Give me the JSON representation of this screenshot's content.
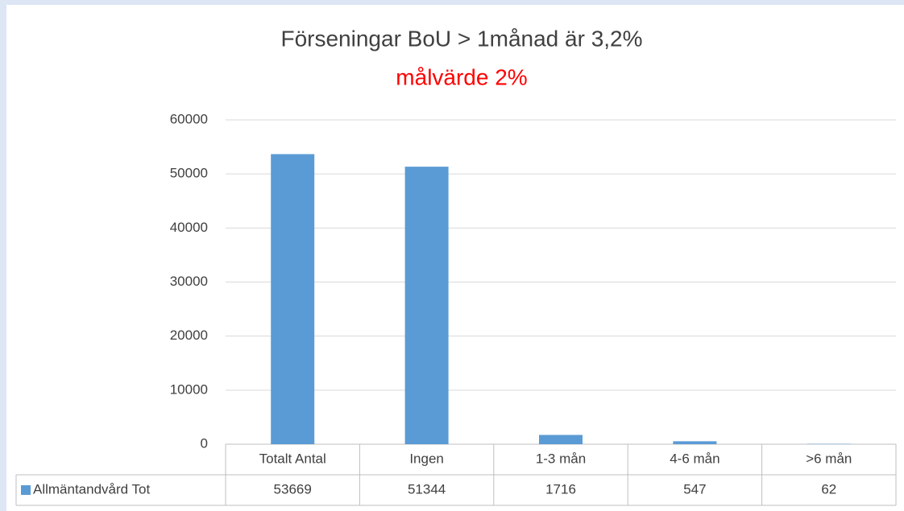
{
  "chart_data": {
    "type": "bar",
    "title": "Förseningar BoU > 1månad är 3,2%",
    "subtitle": "målvärde 2%",
    "categories": [
      "Totalt Antal",
      "Ingen",
      "1-3 mån",
      "4-6 mån",
      ">6 mån"
    ],
    "series": [
      {
        "name": "Allmäntandvård Tot",
        "color": "#5b9bd5",
        "values": [
          53669,
          51344,
          1716,
          547,
          62
        ]
      }
    ],
    "ylim": [
      0,
      60000
    ],
    "yticks": [
      0,
      10000,
      20000,
      30000,
      40000,
      50000,
      60000
    ],
    "grid": true
  }
}
